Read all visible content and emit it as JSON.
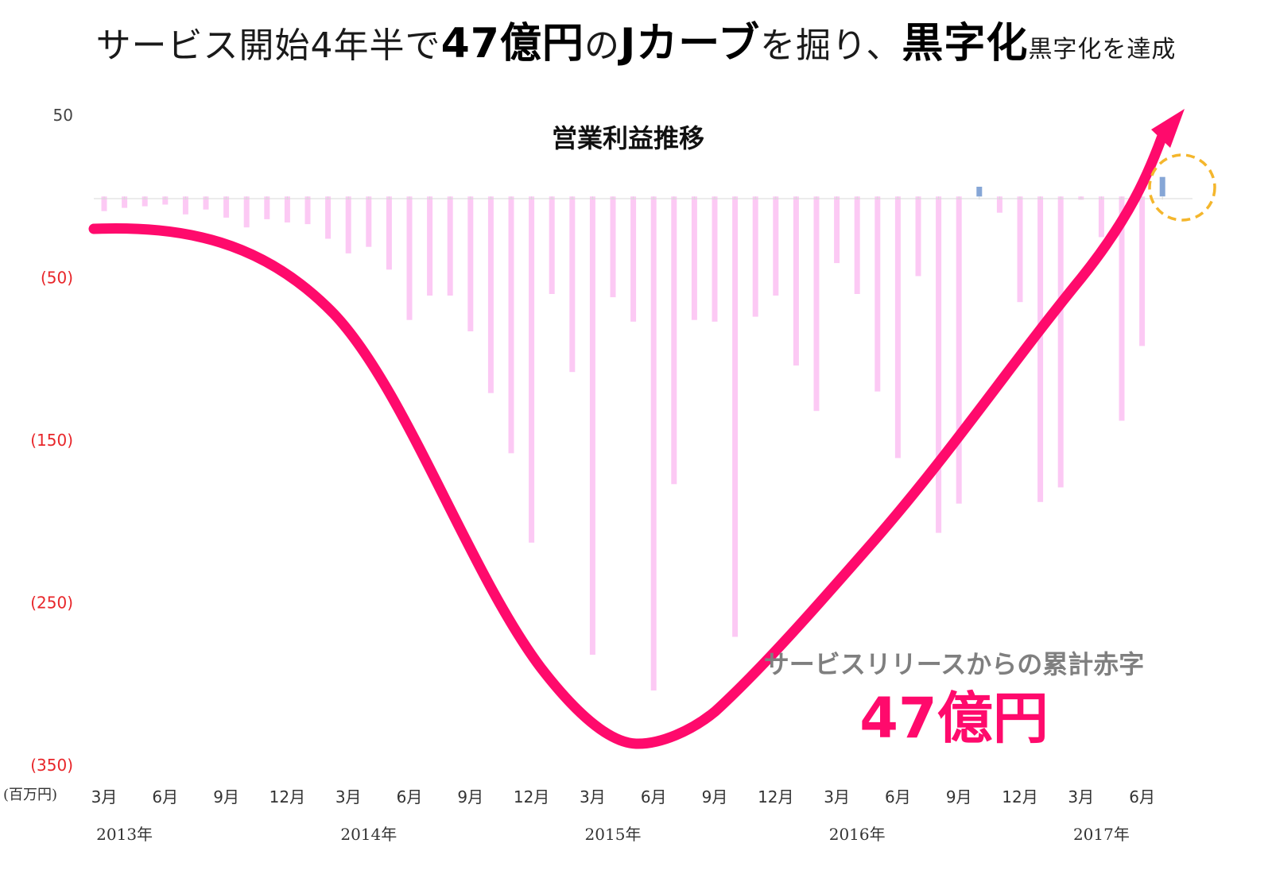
{
  "headline": {
    "part1": "サービス開始4年半で",
    "bold1": "47億円",
    "part2": "の",
    "bold2": "Jカーブ",
    "part3": "を掘り、",
    "bold3": "黒字化",
    "part4": "黒字化を達成"
  },
  "chart_data": {
    "type": "bar",
    "title": "営業利益推移",
    "unit_label": "(百万円)",
    "ylim": [
      -350,
      50
    ],
    "yticks": [
      {
        "label": "50",
        "value": 50,
        "negative": false
      },
      {
        "label": "(50)",
        "value": -50,
        "negative": true
      },
      {
        "label": "(150)",
        "value": -150,
        "negative": true
      },
      {
        "label": "(250)",
        "value": -250,
        "negative": true
      },
      {
        "label": "(350)",
        "value": -350,
        "negative": true
      }
    ],
    "x_tick_labels": [
      {
        "index": 0,
        "label": "3月"
      },
      {
        "index": 3,
        "label": "6月"
      },
      {
        "index": 6,
        "label": "9月"
      },
      {
        "index": 9,
        "label": "12月"
      },
      {
        "index": 12,
        "label": "3月"
      },
      {
        "index": 15,
        "label": "6月"
      },
      {
        "index": 18,
        "label": "9月"
      },
      {
        "index": 21,
        "label": "12月"
      },
      {
        "index": 24,
        "label": "3月"
      },
      {
        "index": 27,
        "label": "6月"
      },
      {
        "index": 30,
        "label": "9月"
      },
      {
        "index": 33,
        "label": "12月"
      },
      {
        "index": 36,
        "label": "3月"
      },
      {
        "index": 39,
        "label": "6月"
      },
      {
        "index": 42,
        "label": "9月"
      },
      {
        "index": 45,
        "label": "12月"
      },
      {
        "index": 48,
        "label": "3月"
      },
      {
        "index": 51,
        "label": "6月"
      }
    ],
    "year_labels": [
      {
        "index": 1,
        "label": "2013年"
      },
      {
        "index": 13,
        "label": "2014年"
      },
      {
        "index": 25,
        "label": "2015年"
      },
      {
        "index": 37,
        "label": "2016年"
      },
      {
        "index": 49,
        "label": "2017年"
      }
    ],
    "values": [
      -9,
      -7,
      -6,
      -5,
      -11,
      -8,
      -13,
      -19,
      -14,
      -16,
      -17,
      -26,
      -35,
      -31,
      -45,
      -76,
      -61,
      -61,
      -83,
      -121,
      -158,
      -213,
      -60,
      -108,
      -282,
      -62,
      -77,
      -304,
      -177,
      -76,
      -77,
      -271,
      -74,
      -61,
      -104,
      -132,
      -41,
      -60,
      -120,
      -161,
      -49,
      -207,
      -189,
      6,
      -10,
      -65,
      -188,
      -179,
      -2,
      -25,
      -138,
      -92,
      12
    ],
    "colors": {
      "negative_bar": "#fcc9f4",
      "positive_bar": "#86a6d6",
      "curve": "#ff0a6c",
      "highlight_circle": "#f4b62c"
    },
    "annotation": {
      "label": "サービスリリースからの累計赤字",
      "value": "47億円"
    }
  }
}
